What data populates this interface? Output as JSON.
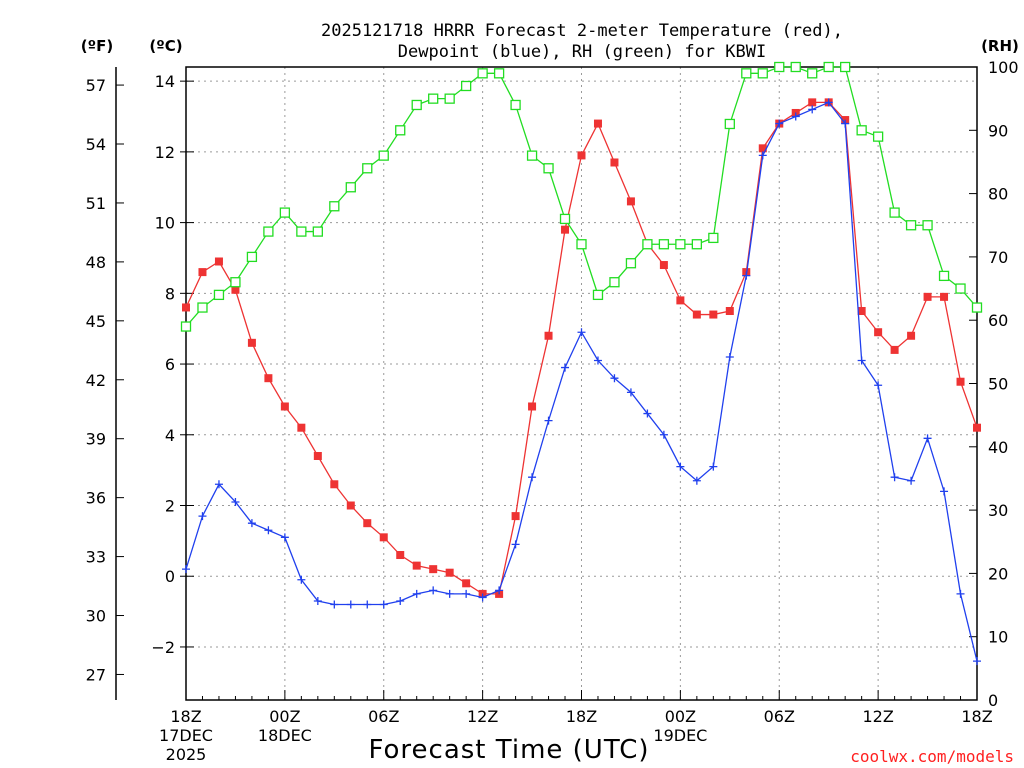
{
  "chart_data": {
    "type": "line",
    "title_line1": "2025121718 HRRR Forecast 2-meter Temperature (red),",
    "title_line2": "Dewpoint (blue), RH (green) for KBWI",
    "xlabel": "Forecast Time (UTC)",
    "credit": "coolwx.com/models",
    "units": {
      "fahrenheit": "(ºF)",
      "celsius": "(ºC)",
      "rh": "(RH)"
    },
    "x_range_hours": [
      0,
      48
    ],
    "y_celsius_range": [
      -3.5,
      14.4
    ],
    "y_rh_range": [
      0,
      100
    ],
    "celsius_ticks": [
      "−2",
      "0",
      "2",
      "4",
      "6",
      "8",
      "10",
      "12",
      "14"
    ],
    "celsius_tick_values": [
      -2,
      0,
      2,
      4,
      6,
      8,
      10,
      12,
      14
    ],
    "fahrenheit_ticks": [
      "27",
      "30",
      "33",
      "36",
      "39",
      "42",
      "45",
      "48",
      "51",
      "54",
      "57"
    ],
    "fahrenheit_tick_values": [
      27,
      30,
      33,
      36,
      39,
      42,
      45,
      48,
      51,
      54,
      57
    ],
    "rh_ticks": [
      "0",
      "10",
      "20",
      "30",
      "40",
      "50",
      "60",
      "70",
      "80",
      "90",
      "100"
    ],
    "rh_tick_values": [
      0,
      10,
      20,
      30,
      40,
      50,
      60,
      70,
      80,
      90,
      100
    ],
    "x_ticks": [
      {
        "hour": 0,
        "lines": [
          "18Z",
          "17DEC",
          "2025"
        ]
      },
      {
        "hour": 6,
        "lines": [
          "00Z",
          "18DEC"
        ]
      },
      {
        "hour": 12,
        "lines": [
          "06Z"
        ]
      },
      {
        "hour": 18,
        "lines": [
          "12Z"
        ]
      },
      {
        "hour": 24,
        "lines": [
          "18Z"
        ]
      },
      {
        "hour": 30,
        "lines": [
          "00Z",
          "19DEC"
        ]
      },
      {
        "hour": 36,
        "lines": [
          "06Z"
        ]
      },
      {
        "hour": 42,
        "lines": [
          "12Z"
        ]
      },
      {
        "hour": 48,
        "lines": [
          "18Z"
        ]
      }
    ],
    "series": [
      {
        "name": "Temperature",
        "axis": "celsius",
        "color": "#ee3333",
        "marker": "filled-square",
        "values": [
          7.6,
          8.6,
          8.9,
          8.1,
          6.6,
          5.6,
          4.8,
          4.2,
          3.4,
          2.6,
          2.0,
          1.5,
          1.1,
          0.6,
          0.3,
          0.2,
          0.1,
          -0.2,
          -0.5,
          -0.5,
          1.7,
          4.8,
          6.8,
          9.8,
          11.9,
          12.8,
          11.7,
          10.6,
          9.4,
          8.8,
          7.8,
          7.4,
          7.4,
          7.5,
          8.6,
          12.1,
          12.8,
          13.1,
          13.4,
          13.4,
          12.9,
          7.5,
          6.9,
          6.4,
          6.8,
          7.9,
          7.9,
          5.5,
          4.2
        ]
      },
      {
        "name": "Dewpoint",
        "axis": "celsius",
        "color": "#2040ee",
        "marker": "plus",
        "values": [
          0.2,
          1.7,
          2.6,
          2.1,
          1.5,
          1.3,
          1.1,
          -0.1,
          -0.7,
          -0.8,
          -0.8,
          -0.8,
          -0.8,
          -0.7,
          -0.5,
          -0.4,
          -0.5,
          -0.5,
          -0.6,
          -0.4,
          0.9,
          2.8,
          4.4,
          5.9,
          6.9,
          6.1,
          5.6,
          5.2,
          4.6,
          4.0,
          3.1,
          2.7,
          3.1,
          6.2,
          8.5,
          11.9,
          12.8,
          13.0,
          13.2,
          13.4,
          12.8,
          6.1,
          5.4,
          2.8,
          2.7,
          3.9,
          2.4,
          -0.5,
          -2.4
        ]
      },
      {
        "name": "Relative Humidity",
        "axis": "rh",
        "color": "#22dd22",
        "marker": "open-square",
        "values": [
          59,
          62,
          64,
          66,
          70,
          74,
          77,
          74,
          74,
          78,
          81,
          84,
          86,
          90,
          94,
          95,
          95,
          97,
          99,
          99,
          94,
          86,
          84,
          76,
          72,
          64,
          66,
          69,
          72,
          72,
          72,
          72,
          73,
          91,
          99,
          99,
          100,
          100,
          99,
          100,
          100,
          90,
          89,
          77,
          75,
          75,
          67,
          65,
          62
        ]
      }
    ]
  }
}
